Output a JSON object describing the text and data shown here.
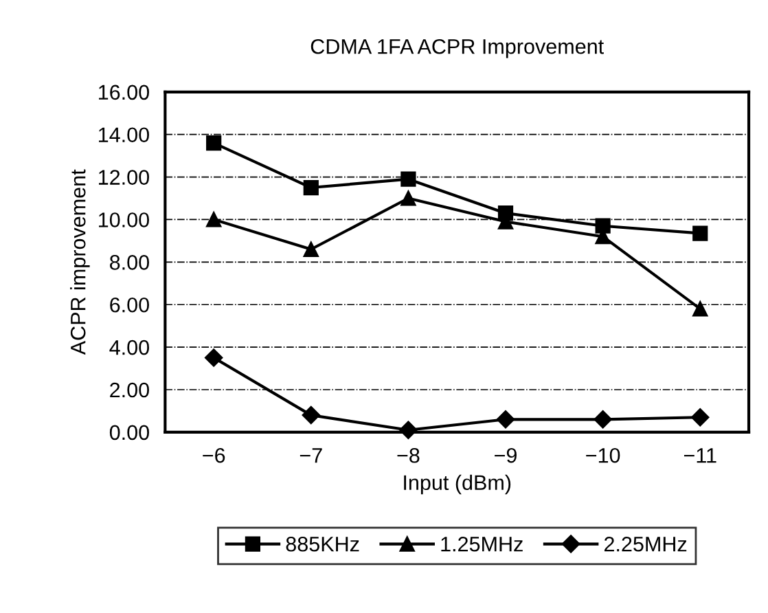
{
  "chart_data": {
    "type": "line",
    "title": "CDMA 1FA ACPR Improvement",
    "xlabel": "Input (dBm)",
    "ylabel": "ACPR improvement",
    "categories": [
      "−6",
      "−7",
      "−8",
      "−9",
      "−10",
      "−11"
    ],
    "series": [
      {
        "name": "885KHz",
        "color": "#000000",
        "marker": "square",
        "values": [
          13.6,
          11.5,
          11.9,
          10.3,
          9.7,
          9.35
        ]
      },
      {
        "name": "1.25MHz",
        "color": "#000000",
        "marker": "triangle",
        "values": [
          10.0,
          8.6,
          11.0,
          9.9,
          9.2,
          5.8
        ]
      },
      {
        "name": "2.25MHz",
        "color": "#000000",
        "marker": "diamond",
        "values": [
          3.5,
          0.8,
          0.1,
          0.6,
          0.6,
          0.7
        ]
      }
    ],
    "ylim": [
      0,
      16
    ],
    "yticks": [
      {
        "value": 0,
        "label": "0.00"
      },
      {
        "value": 2,
        "label": "2.00"
      },
      {
        "value": 4,
        "label": "4.00"
      },
      {
        "value": 6,
        "label": "6.00"
      },
      {
        "value": 8,
        "label": "8.00"
      },
      {
        "value": 10,
        "label": "10.00"
      },
      {
        "value": 12,
        "label": "12.00"
      },
      {
        "value": 14,
        "label": "14.00"
      },
      {
        "value": 16,
        "label": "16.00"
      }
    ],
    "grid": "y",
    "legend": "bottom",
    "line_style": "solid"
  }
}
